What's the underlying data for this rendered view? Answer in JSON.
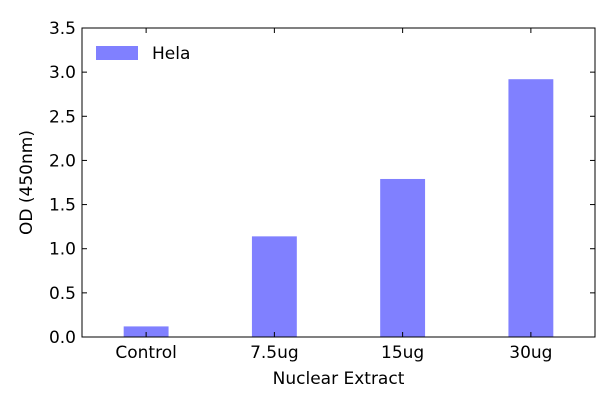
{
  "chart_data": {
    "type": "bar",
    "categories": [
      "Control",
      "7.5ug",
      "15ug",
      "30ug"
    ],
    "series": [
      {
        "name": "Hela",
        "values": [
          0.12,
          1.14,
          1.79,
          2.92
        ],
        "color": "#8080ff"
      }
    ],
    "xlabel": "Nuclear Extract",
    "ylabel": "OD (450nm)",
    "ylim": [
      0,
      3.5
    ],
    "yticks": [
      "0.0",
      "0.5",
      "1.0",
      "1.5",
      "2.0",
      "2.5",
      "3.0",
      "3.5"
    ],
    "grid": false,
    "legend_position": "top-left"
  }
}
